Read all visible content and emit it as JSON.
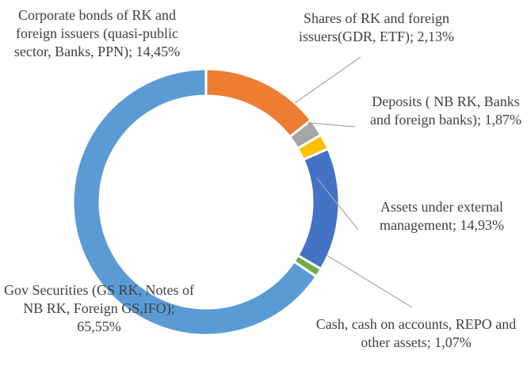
{
  "chart_data": {
    "type": "donut",
    "categories": [
      "Corporate bonds of RK and foreign issuers (quasi-public sector, Banks, PPN);",
      "Shares of RK and foreign issuers(GDR, ETF);",
      "Deposits ( NB RK, Banks and foreign banks);",
      "Assets under external management;",
      "Cash, cash on accounts, REPO and other assets;",
      "Gov Securities (GS RK, Notes of NB RK, Foreign GS,IFO);"
    ],
    "values": [
      14.45,
      2.13,
      1.87,
      14.93,
      1.07,
      65.55
    ],
    "value_labels": [
      "14,45%",
      "2,13%",
      "1,87%",
      "14,93%",
      "1,07%",
      "65,55%"
    ],
    "colors": [
      "#ed7d31",
      "#a5a5a5",
      "#ffc000",
      "#4472c4",
      "#70ad47",
      "#5b9bd5"
    ]
  }
}
